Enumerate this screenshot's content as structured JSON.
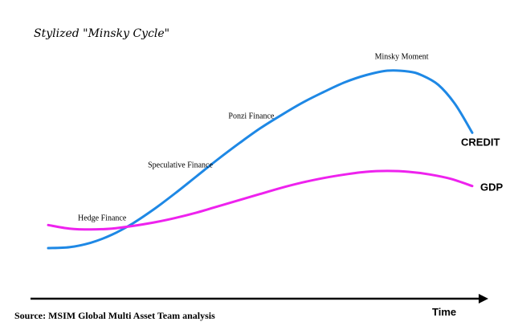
{
  "chart_data": {
    "type": "line",
    "title": "Stylized \"Minsky Cycle\"",
    "xlabel": "Time",
    "ylabel": "",
    "source": "Source: MSIM Global Multi Asset Team analysis",
    "grid": false,
    "legend": "inline-right",
    "series": [
      {
        "name": "CREDIT",
        "color": "#1e88e5",
        "x": [
          0,
          0.05,
          0.1,
          0.15,
          0.2,
          0.25,
          0.3,
          0.35,
          0.4,
          0.45,
          0.5,
          0.55,
          0.6,
          0.65,
          0.7,
          0.75,
          0.8,
          0.85,
          0.88,
          0.92,
          0.96,
          1.0
        ],
        "y": [
          0.0,
          0.005,
          0.03,
          0.075,
          0.14,
          0.22,
          0.31,
          0.405,
          0.5,
          0.59,
          0.675,
          0.75,
          0.82,
          0.88,
          0.935,
          0.975,
          1.0,
          0.995,
          0.975,
          0.92,
          0.81,
          0.65
        ]
      },
      {
        "name": "GDP",
        "color": "#ee22ee",
        "x": [
          0,
          0.05,
          0.1,
          0.15,
          0.2,
          0.25,
          0.3,
          0.35,
          0.4,
          0.45,
          0.5,
          0.55,
          0.6,
          0.65,
          0.7,
          0.75,
          0.8,
          0.85,
          0.9,
          0.95,
          1.0
        ],
        "y": [
          0.13,
          0.11,
          0.105,
          0.11,
          0.125,
          0.145,
          0.17,
          0.2,
          0.235,
          0.27,
          0.305,
          0.34,
          0.37,
          0.395,
          0.415,
          0.43,
          0.435,
          0.43,
          0.415,
          0.39,
          0.35
        ]
      }
    ],
    "annotations": [
      {
        "text": "Hedge Finance",
        "x": 0.07,
        "y": 0.155
      },
      {
        "text": "Speculative Finance",
        "x": 0.235,
        "y": 0.455
      },
      {
        "text": "Ponzi Finance",
        "x": 0.425,
        "y": 0.73
      },
      {
        "text": "Minsky Moment",
        "x": 0.77,
        "y": 1.065
      }
    ]
  }
}
